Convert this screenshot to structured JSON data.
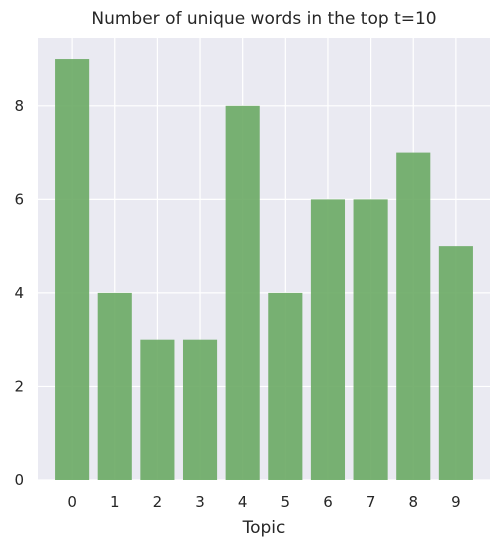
{
  "chart_data": {
    "type": "bar",
    "title": "Number of unique words in the top t=10",
    "xlabel": "Topic",
    "ylabel": "",
    "categories": [
      "0",
      "1",
      "2",
      "3",
      "4",
      "5",
      "6",
      "7",
      "8",
      "9"
    ],
    "values": [
      9,
      4,
      3,
      3,
      8,
      4,
      6,
      6,
      7,
      5
    ],
    "ylim": [
      0,
      9.45
    ],
    "yticks": [
      "0",
      "2",
      "4",
      "6",
      "8"
    ],
    "grid": true,
    "colors": {
      "bar": "#6aaa64",
      "plot_background": "#eaeaf2",
      "grid": "#ffffff",
      "text": "#262626"
    }
  }
}
